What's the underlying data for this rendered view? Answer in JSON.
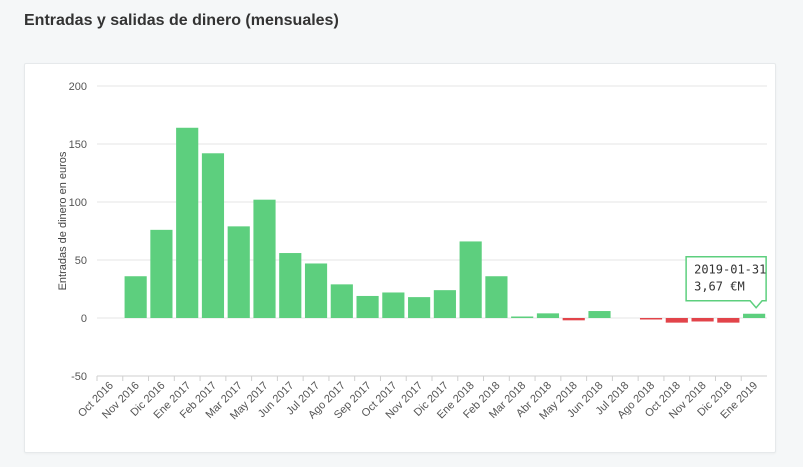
{
  "page": {
    "title": "Entradas y salidas de dinero (mensuales)"
  },
  "tooltip": {
    "date": "2019-01-31",
    "value": "3,67 €M",
    "index": 27
  },
  "colors": {
    "positive": "#5dcf7e",
    "negative": "#e2444a",
    "grid": "#e6e6e6",
    "tooltip_border": "#5dcf7e"
  },
  "chart_data": {
    "type": "bar",
    "title": "",
    "xlabel": "",
    "ylabel": "Entradas de dinero en euros",
    "ylim": [
      -50,
      200
    ],
    "yticks": [
      -50,
      0,
      50,
      100,
      150,
      200
    ],
    "grid": true,
    "legend": "none",
    "categories": [
      "Oct 2016",
      "Nov 2016",
      "Dic 2016",
      "Ene 2017",
      "Feb 2017",
      "Mar 2017",
      "May 2017",
      "Jun 2017",
      "Jul 2017",
      "Ago 2017",
      "Sep 2017",
      "Oct 2017",
      "Nov 2017",
      "Dic 2017",
      "Ene 2018",
      "Feb 2018",
      "Mar 2018",
      "Abr 2018",
      "May 2018",
      "Jun 2018",
      "Jul 2018",
      "Ago 2018",
      "Oct 2018",
      "Nov 2018",
      "Dic 2018",
      "Ene 2019"
    ],
    "values": [
      0,
      36,
      76,
      164,
      142,
      79,
      102,
      56,
      47,
      29,
      19,
      22,
      18,
      24,
      66,
      36,
      0.5,
      4,
      -2,
      6,
      0,
      -1,
      -4,
      -3,
      -4,
      3.67
    ]
  }
}
